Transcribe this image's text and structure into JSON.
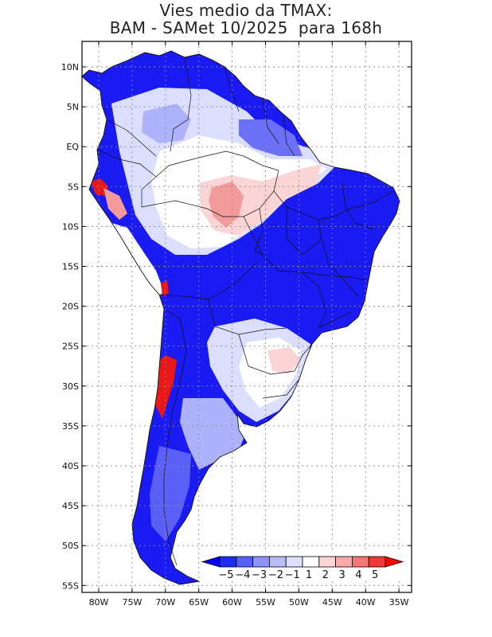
{
  "title_line1": "Vies medio da TMAX:",
  "title_line2": "BAM - SAMet 10/2025  para 168h",
  "lat_labels": [
    "10N",
    "5N",
    "EQ",
    "5S",
    "10S",
    "15S",
    "20S",
    "25S",
    "30S",
    "35S",
    "40S",
    "45S",
    "50S",
    "55S"
  ],
  "lat_values": [
    10,
    5,
    0,
    -5,
    -10,
    -15,
    -20,
    -25,
    -30,
    -35,
    -40,
    -45,
    -50,
    -55
  ],
  "lon_labels": [
    "80W",
    "75W",
    "70W",
    "65W",
    "60W",
    "55W",
    "50W",
    "45W",
    "40W",
    "35W"
  ],
  "lon_values": [
    -80,
    -75,
    -70,
    -65,
    -60,
    -55,
    -50,
    -45,
    -40,
    -35
  ],
  "colorbar": {
    "labels": [
      "-5",
      "-4",
      "-3",
      "-2",
      "-1",
      "1",
      "2",
      "3",
      "4",
      "5"
    ],
    "colors": [
      "#1e2bf0",
      "#5560f6",
      "#8c92fa",
      "#b9bcfb",
      "#dfe0fd",
      "#ffffff",
      "#fcd6d6",
      "#f9a9a9",
      "#f47676",
      "#ee3a3a"
    ],
    "low_arrow": "#0000ff",
    "high_arrow": "#ff0000"
  },
  "palette": {
    "strong_cold": "#1010f0",
    "mid_cold": "#5a5ff5",
    "light_cold": "#aeb2fa",
    "pale_cold": "#dcdefd",
    "neutral": "#ffffff",
    "pale_warm": "#fbd5d5",
    "warm": "#f39a9a",
    "hot": "#e81818"
  }
}
